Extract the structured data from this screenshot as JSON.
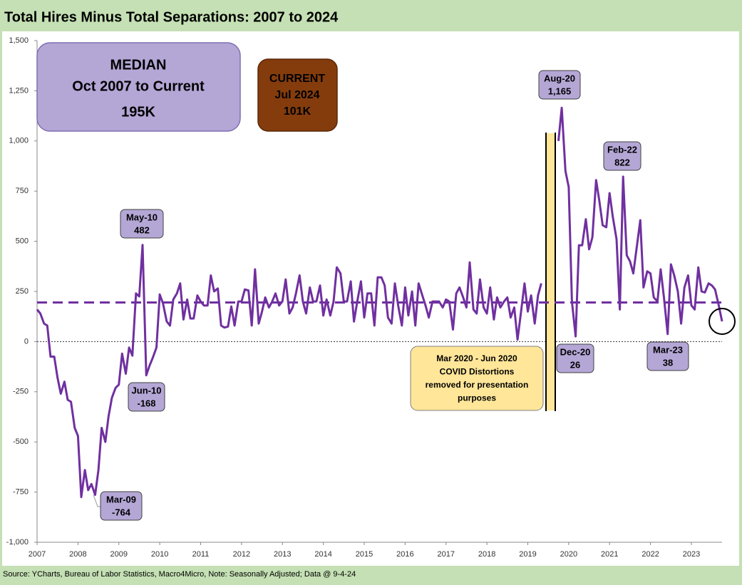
{
  "chart_data": {
    "type": "line",
    "title": "Total Hires Minus Total Separations: 2007 to 2024",
    "source": "Source: YCharts, Bureau of Labor Statistics, Macro4Micro, Note: Seasonally Adjusted; Data @ 9-4-24",
    "xlim": [
      2007,
      2023.75
    ],
    "xticks": [
      2007,
      2008,
      2009,
      2010,
      2011,
      2012,
      2013,
      2014,
      2015,
      2016,
      2017,
      2018,
      2019,
      2020,
      2021,
      2022,
      2023
    ],
    "ylim": [
      -1000,
      1500
    ],
    "yticks": [
      {
        "value": -1000,
        "label": "-1,000"
      },
      -750,
      -500,
      -250,
      0,
      250,
      500,
      750,
      {
        "value": 1000,
        "label": "1,000"
      },
      {
        "value": 1250,
        "label": "1,250"
      },
      {
        "value": 1500,
        "label": "1,500"
      }
    ],
    "x": [
      2007,
      2007.08,
      2007.17,
      2007.25,
      2007.33,
      2007.42,
      2007.5,
      2007.58,
      2007.67,
      2007.75,
      2007.83,
      2007.92,
      2008,
      2008.08,
      2008.17,
      2008.25,
      2008.33,
      2008.42,
      2008.5,
      2008.58,
      2008.67,
      2008.75,
      2008.83,
      2008.92,
      2009,
      2009.08,
      2009.17,
      2009.25,
      2009.33,
      2009.42,
      2009.5,
      2009.58,
      2009.67,
      2009.75,
      2009.83,
      2009.92,
      2010,
      2010.08,
      2010.17,
      2010.25,
      2010.33,
      2010.42,
      2010.5,
      2010.58,
      2010.67,
      2010.75,
      2010.83,
      2010.92,
      2011,
      2011.08,
      2011.17,
      2011.25,
      2011.33,
      2011.42,
      2011.5,
      2011.58,
      2011.67,
      2011.75,
      2011.83,
      2011.92,
      2012,
      2012.08,
      2012.17,
      2012.25,
      2012.33,
      2012.42,
      2012.5,
      2012.58,
      2012.67,
      2012.75,
      2012.83,
      2012.92,
      2013,
      2013.08,
      2013.17,
      2013.25,
      2013.33,
      2013.42,
      2013.5,
      2013.58,
      2013.67,
      2013.75,
      2013.83,
      2013.92,
      2014,
      2014.08,
      2014.17,
      2014.25,
      2014.33,
      2014.42,
      2014.5,
      2014.58,
      2014.67,
      2014.75,
      2014.83,
      2014.92,
      2015,
      2015.08,
      2015.17,
      2015.25,
      2015.33,
      2015.42,
      2015.5,
      2015.58,
      2015.67,
      2015.75,
      2015.83,
      2015.92,
      2016,
      2016.08,
      2016.17,
      2016.25,
      2016.33,
      2016.42,
      2016.5,
      2016.58,
      2016.67,
      2016.75,
      2016.83,
      2016.92,
      2017,
      2017.08,
      2017.17,
      2017.25,
      2017.33,
      2017.42,
      2017.5,
      2017.58,
      2017.67,
      2017.75,
      2017.83,
      2017.92,
      2018,
      2018.08,
      2018.17,
      2018.25,
      2018.33,
      2018.42,
      2018.5,
      2018.58,
      2018.67,
      2018.75,
      2018.83,
      2018.92,
      2019,
      2019.08,
      2019.17,
      2019.25,
      2019.33,
      2019.42,
      2019.5,
      2019.58,
      2019.67,
      2019.75,
      2019.83,
      2019.92,
      2020,
      2020.08,
      2020.17,
      2020.25,
      2020.33,
      2020.42,
      2020.5,
      2020.58,
      2020.67,
      2020.75,
      2020.83,
      2020.92,
      2021,
      2021.08,
      2021.17,
      2021.25,
      2021.33,
      2021.42,
      2021.5,
      2021.58,
      2021.67,
      2021.75,
      2021.83,
      2021.92,
      2022,
      2022.08,
      2022.17,
      2022.25,
      2022.33,
      2022.42,
      2022.5,
      2022.58,
      2022.67,
      2022.75,
      2022.83,
      2022.92,
      2023,
      2023.08,
      2023.17,
      2023.25,
      2023.33,
      2023.42,
      2023.5,
      2023.58,
      2023.67,
      2023.75
    ],
    "series": [
      {
        "color": "#7030a0",
        "values": [
          160,
          140,
          90,
          80,
          -75,
          -75,
          -180,
          -260,
          -200,
          -290,
          -300,
          -430,
          -470,
          -775,
          -640,
          -740,
          -710,
          -764,
          -640,
          -430,
          -500,
          -370,
          -280,
          -230,
          -215,
          -60,
          -160,
          -30,
          -70,
          240,
          225,
          482,
          -168,
          -120,
          -80,
          -30,
          235,
          190,
          100,
          80,
          210,
          240,
          290,
          110,
          210,
          115,
          115,
          230,
          200,
          180,
          180,
          330,
          250,
          265,
          80,
          70,
          75,
          175,
          80,
          200,
          200,
          260,
          255,
          80,
          360,
          90,
          150,
          220,
          170,
          200,
          240,
          180,
          200,
          310,
          140,
          170,
          240,
          330,
          200,
          140,
          270,
          200,
          200,
          280,
          130,
          210,
          130,
          200,
          370,
          340,
          200,
          200,
          300,
          100,
          200,
          300,
          120,
          240,
          240,
          80,
          320,
          320,
          280,
          120,
          90,
          290,
          180,
          80,
          270,
          130,
          250,
          80,
          290,
          230,
          180,
          120,
          200,
          200,
          200,
          170,
          210,
          200,
          60,
          240,
          270,
          220,
          170,
          395,
          160,
          140,
          310,
          170,
          140,
          270,
          110,
          220,
          170,
          200,
          220,
          120,
          170,
          10,
          140,
          290,
          150,
          230,
          90,
          230,
          290,
          null,
          null,
          null,
          null,
          1000,
          1165,
          850,
          770,
          200,
          26,
          480,
          480,
          610,
          460,
          520,
          805,
          700,
          580,
          570,
          740,
          620,
          510,
          160,
          822,
          430,
          400,
          340,
          480,
          605,
          270,
          350,
          340,
          220,
          200,
          360,
          220,
          38,
          385,
          330,
          250,
          90,
          270,
          330,
          180,
          160,
          370,
          250,
          245,
          290,
          280,
          260,
          180,
          101
        ]
      }
    ],
    "median": {
      "title": "MEDIAN",
      "period": "Oct 2007 to Current",
      "label": "195K",
      "value": 195,
      "color": "#7030a0"
    },
    "current": {
      "title": "CURRENT",
      "period": "Jul 2024",
      "label": "101K",
      "value": 101
    },
    "covid_note": [
      "Mar 2020 - Jun 2020",
      "COVID Distortions",
      "removed for presentation",
      "purposes"
    ],
    "annotations": [
      {
        "label": "May-10",
        "value": 482
      },
      {
        "label": "Jun-10",
        "value": -168
      },
      {
        "label": "Mar-09",
        "value": -764
      },
      {
        "label": "Aug-20",
        "value": 1165,
        "value_label": "1,165"
      },
      {
        "label": "Feb-22",
        "value": 822
      },
      {
        "label": "Dec-20",
        "value": 26
      },
      {
        "label": "Mar-23",
        "value": 38
      }
    ]
  }
}
